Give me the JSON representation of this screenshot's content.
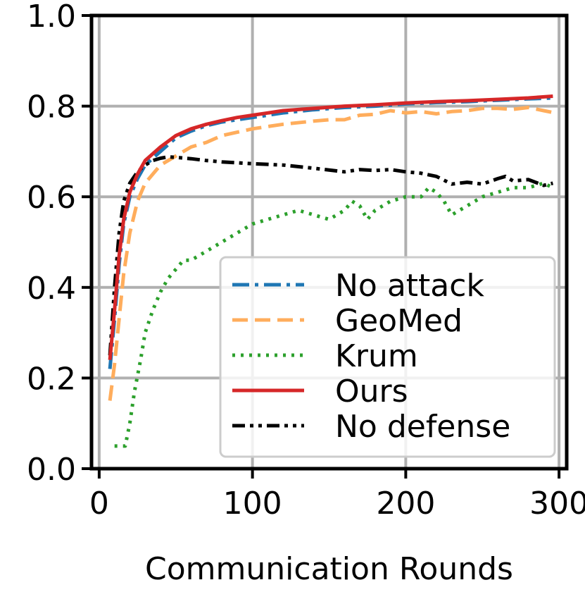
{
  "chart_data": {
    "type": "line",
    "title": "",
    "xlabel": "Communication Rounds",
    "ylabel": "",
    "xlim": [
      -5,
      305
    ],
    "ylim": [
      0.0,
      1.0
    ],
    "xticks": [
      "0",
      "100",
      "200",
      "300"
    ],
    "xtick_values": [
      0,
      100,
      200,
      300
    ],
    "yticks": [
      "0.0",
      "0.2",
      "0.4",
      "0.6",
      "0.8",
      "1.0"
    ],
    "ytick_values": [
      0.0,
      0.2,
      0.4,
      0.6,
      0.8,
      1.0
    ],
    "grid": true,
    "legend_position": "lower-right",
    "series": [
      {
        "name": "No attack",
        "color": "#1f77b4",
        "dash": "dashdot",
        "x": [
          7,
          10,
          13,
          16,
          20,
          25,
          30,
          40,
          50,
          60,
          70,
          80,
          90,
          100,
          120,
          140,
          160,
          180,
          200,
          220,
          240,
          260,
          280,
          296
        ],
        "y": [
          0.22,
          0.33,
          0.45,
          0.54,
          0.6,
          0.64,
          0.67,
          0.7,
          0.73,
          0.745,
          0.757,
          0.765,
          0.77,
          0.775,
          0.785,
          0.792,
          0.797,
          0.8,
          0.805,
          0.808,
          0.81,
          0.813,
          0.816,
          0.818
        ]
      },
      {
        "name": "GeoMed",
        "color": "#ffad5c",
        "dash": "dashed",
        "x": [
          7,
          10,
          13,
          16,
          20,
          25,
          30,
          40,
          50,
          60,
          70,
          80,
          100,
          120,
          140,
          150,
          160,
          170,
          180,
          190,
          200,
          210,
          220,
          230,
          240,
          250,
          260,
          270,
          280,
          290,
          296
        ],
        "y": [
          0.15,
          0.23,
          0.33,
          0.43,
          0.52,
          0.59,
          0.63,
          0.67,
          0.69,
          0.71,
          0.72,
          0.735,
          0.75,
          0.76,
          0.767,
          0.77,
          0.77,
          0.78,
          0.782,
          0.79,
          0.785,
          0.788,
          0.783,
          0.788,
          0.79,
          0.795,
          0.795,
          0.793,
          0.797,
          0.79,
          0.786
        ]
      },
      {
        "name": "Krum",
        "color": "#2ca02c",
        "dash": "dotted",
        "x": [
          10,
          17,
          20,
          23,
          27,
          30,
          35,
          40,
          45,
          50,
          55,
          60,
          70,
          80,
          90,
          100,
          110,
          120,
          130,
          140,
          150,
          160,
          165,
          170,
          175,
          180,
          190,
          200,
          210,
          215,
          220,
          225,
          230,
          240,
          250,
          260,
          270,
          280,
          290,
          296
        ],
        "y": [
          0.05,
          0.05,
          0.1,
          0.17,
          0.24,
          0.3,
          0.35,
          0.39,
          0.42,
          0.44,
          0.46,
          0.46,
          0.48,
          0.5,
          0.52,
          0.54,
          0.55,
          0.56,
          0.57,
          0.56,
          0.55,
          0.57,
          0.59,
          0.58,
          0.55,
          0.57,
          0.59,
          0.6,
          0.6,
          0.62,
          0.61,
          0.59,
          0.56,
          0.58,
          0.6,
          0.61,
          0.62,
          0.62,
          0.63,
          0.62
        ]
      },
      {
        "name": "Ours",
        "color": "#d62728",
        "dash": "solid",
        "x": [
          7,
          10,
          13,
          16,
          20,
          25,
          30,
          40,
          50,
          60,
          70,
          80,
          90,
          100,
          120,
          140,
          160,
          180,
          200,
          220,
          240,
          260,
          280,
          296
        ],
        "y": [
          0.24,
          0.35,
          0.47,
          0.55,
          0.61,
          0.65,
          0.68,
          0.71,
          0.735,
          0.75,
          0.76,
          0.768,
          0.775,
          0.78,
          0.79,
          0.795,
          0.8,
          0.803,
          0.807,
          0.81,
          0.812,
          0.815,
          0.818,
          0.822
        ]
      },
      {
        "name": "No defense",
        "color": "#000000",
        "dash": "dashdotdot",
        "x": [
          7,
          10,
          13,
          16,
          20,
          25,
          30,
          35,
          40,
          45,
          50,
          60,
          70,
          80,
          100,
          120,
          140,
          160,
          170,
          180,
          190,
          200,
          210,
          220,
          230,
          240,
          250,
          260,
          265,
          270,
          280,
          290,
          296
        ],
        "y": [
          0.25,
          0.4,
          0.52,
          0.59,
          0.63,
          0.655,
          0.67,
          0.68,
          0.685,
          0.688,
          0.687,
          0.684,
          0.68,
          0.677,
          0.673,
          0.67,
          0.663,
          0.655,
          0.66,
          0.658,
          0.66,
          0.655,
          0.652,
          0.645,
          0.628,
          0.632,
          0.628,
          0.64,
          0.645,
          0.635,
          0.638,
          0.625,
          0.63
        ]
      }
    ]
  }
}
